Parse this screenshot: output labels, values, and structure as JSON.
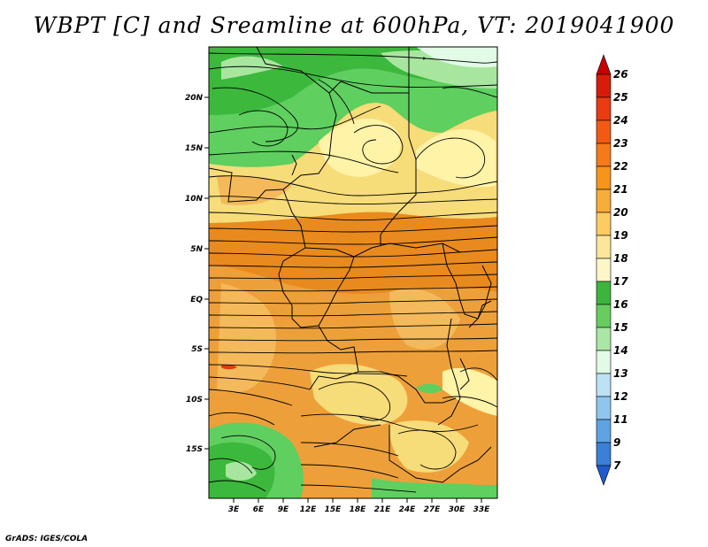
{
  "title": "WBPT [C] and Sreamline at 600hPa, VT: 2019041900",
  "credit": "GrADS: IGES/COLA",
  "map": {
    "lat_labels": [
      "20N",
      "15N",
      "10N",
      "5N",
      "EQ",
      "5S",
      "10S",
      "15S"
    ],
    "lon_labels": [
      "3E",
      "6E",
      "9E",
      "12E",
      "15E",
      "18E",
      "21E",
      "24E",
      "27E",
      "30E",
      "33E"
    ],
    "colors": {
      "green_dark": "#3cb83c",
      "green_mid": "#5fcf5f",
      "green_light": "#a8e6a0",
      "yellow_light": "#fff3a8",
      "yellow": "#f7dc7a",
      "orange_light": "#f4b95a",
      "orange": "#eda03a",
      "orange_dark": "#e98a1e",
      "red": "#e03a1a"
    }
  },
  "colorbar": {
    "levels": [
      "26",
      "25",
      "24",
      "23",
      "22",
      "21",
      "20",
      "19",
      "18",
      "17",
      "16",
      "15",
      "14",
      "13",
      "12",
      "11",
      "9",
      "7"
    ],
    "colors": [
      "#c50000",
      "#d81c0a",
      "#ea3b12",
      "#f25a14",
      "#f57a1a",
      "#f6951c",
      "#f6ad3a",
      "#fccb62",
      "#fde69a",
      "#fff6c8",
      "#3db53d",
      "#67cd5f",
      "#aae6a5",
      "#e2fbe6",
      "#bde2f5",
      "#8fc6ee",
      "#5ea4e4",
      "#3a80d8",
      "#1f5bcc"
    ]
  }
}
